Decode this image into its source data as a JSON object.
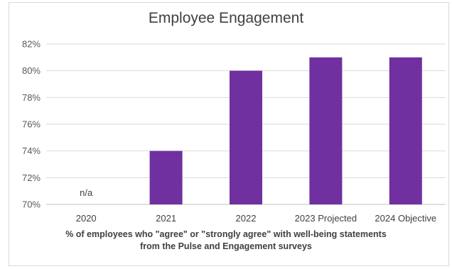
{
  "chart_data": {
    "type": "bar",
    "title": "Employee Engagement",
    "xlabel_line1": "% of employees who \"agree\" or \"strongly agree\" with well-being statements",
    "xlabel_line2": "from the Pulse and Engagement surveys",
    "ylabel": "",
    "categories": [
      "2020",
      "2021",
      "2022",
      "2023 Projected",
      "2024 Objective"
    ],
    "values": [
      null,
      74,
      80,
      81,
      81
    ],
    "data_labels": [
      "n/a",
      "",
      "",
      "",
      ""
    ],
    "ylim": [
      70,
      82
    ],
    "yticks": [
      "70%",
      "72%",
      "74%",
      "76%",
      "78%",
      "80%",
      "82%"
    ],
    "ytick_values": [
      70,
      72,
      74,
      76,
      78,
      80,
      82
    ],
    "grid": true,
    "legend": "none",
    "colors": {
      "bar": "#7030a0",
      "grid": "#d9d9d9",
      "axis": "#bfbfbf"
    }
  }
}
